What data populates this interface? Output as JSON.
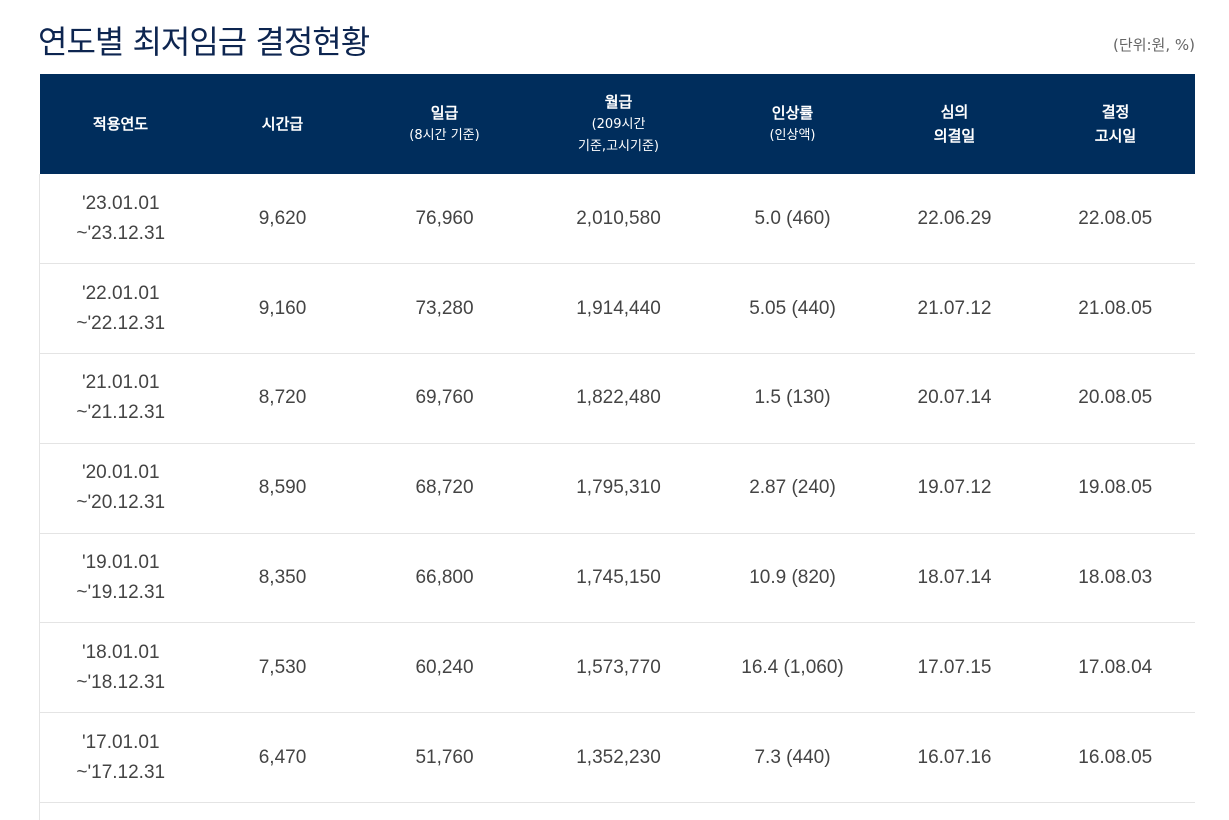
{
  "page": {
    "title": "연도별 최저임금 결정현황",
    "unit": "(단위:원, %)"
  },
  "table": {
    "headers": {
      "year": {
        "main": "적용연도"
      },
      "hourly": {
        "main": "시간급"
      },
      "daily": {
        "main": "일급",
        "sub": "(8시간 기준)"
      },
      "monthly": {
        "main": "월급",
        "sub1": "(209시간",
        "sub2": "기준,고시기준)"
      },
      "rate": {
        "main": "인상률",
        "sub": "(인상액)"
      },
      "review": {
        "line1": "심의",
        "line2": "의결일"
      },
      "notice": {
        "line1": "결정",
        "line2": "고시일"
      }
    },
    "rows": [
      {
        "start": "'23.01.01",
        "end": "~'23.12.31",
        "hourly": "9,620",
        "daily": "76,960",
        "monthly": "2,010,580",
        "rate": "5.0 (460)",
        "review": "22.06.29",
        "notice": "22.08.05"
      },
      {
        "start": "'22.01.01",
        "end": "~'22.12.31",
        "hourly": "9,160",
        "daily": "73,280",
        "monthly": "1,914,440",
        "rate": "5.05 (440)",
        "review": "21.07.12",
        "notice": "21.08.05"
      },
      {
        "start": "'21.01.01",
        "end": "~'21.12.31",
        "hourly": "8,720",
        "daily": "69,760",
        "monthly": "1,822,480",
        "rate": "1.5 (130)",
        "review": "20.07.14",
        "notice": "20.08.05"
      },
      {
        "start": "'20.01.01",
        "end": "~'20.12.31",
        "hourly": "8,590",
        "daily": "68,720",
        "monthly": "1,795,310",
        "rate": "2.87 (240)",
        "review": "19.07.12",
        "notice": "19.08.05"
      },
      {
        "start": "'19.01.01",
        "end": "~'19.12.31",
        "hourly": "8,350",
        "daily": "66,800",
        "monthly": "1,745,150",
        "rate": "10.9 (820)",
        "review": "18.07.14",
        "notice": "18.08.03"
      },
      {
        "start": "'18.01.01",
        "end": "~'18.12.31",
        "hourly": "7,530",
        "daily": "60,240",
        "monthly": "1,573,770",
        "rate": "16.4 (1,060)",
        "review": "17.07.15",
        "notice": "17.08.04"
      },
      {
        "start": "'17.01.01",
        "end": "~'17.12.31",
        "hourly": "6,470",
        "daily": "51,760",
        "monthly": "1,352,230",
        "rate": "7.3 (440)",
        "review": "16.07.16",
        "notice": "16.08.05"
      }
    ]
  },
  "colors": {
    "header_bg": "#002d5c",
    "title": "#0d2550",
    "row_border": "#e4e4e4"
  }
}
